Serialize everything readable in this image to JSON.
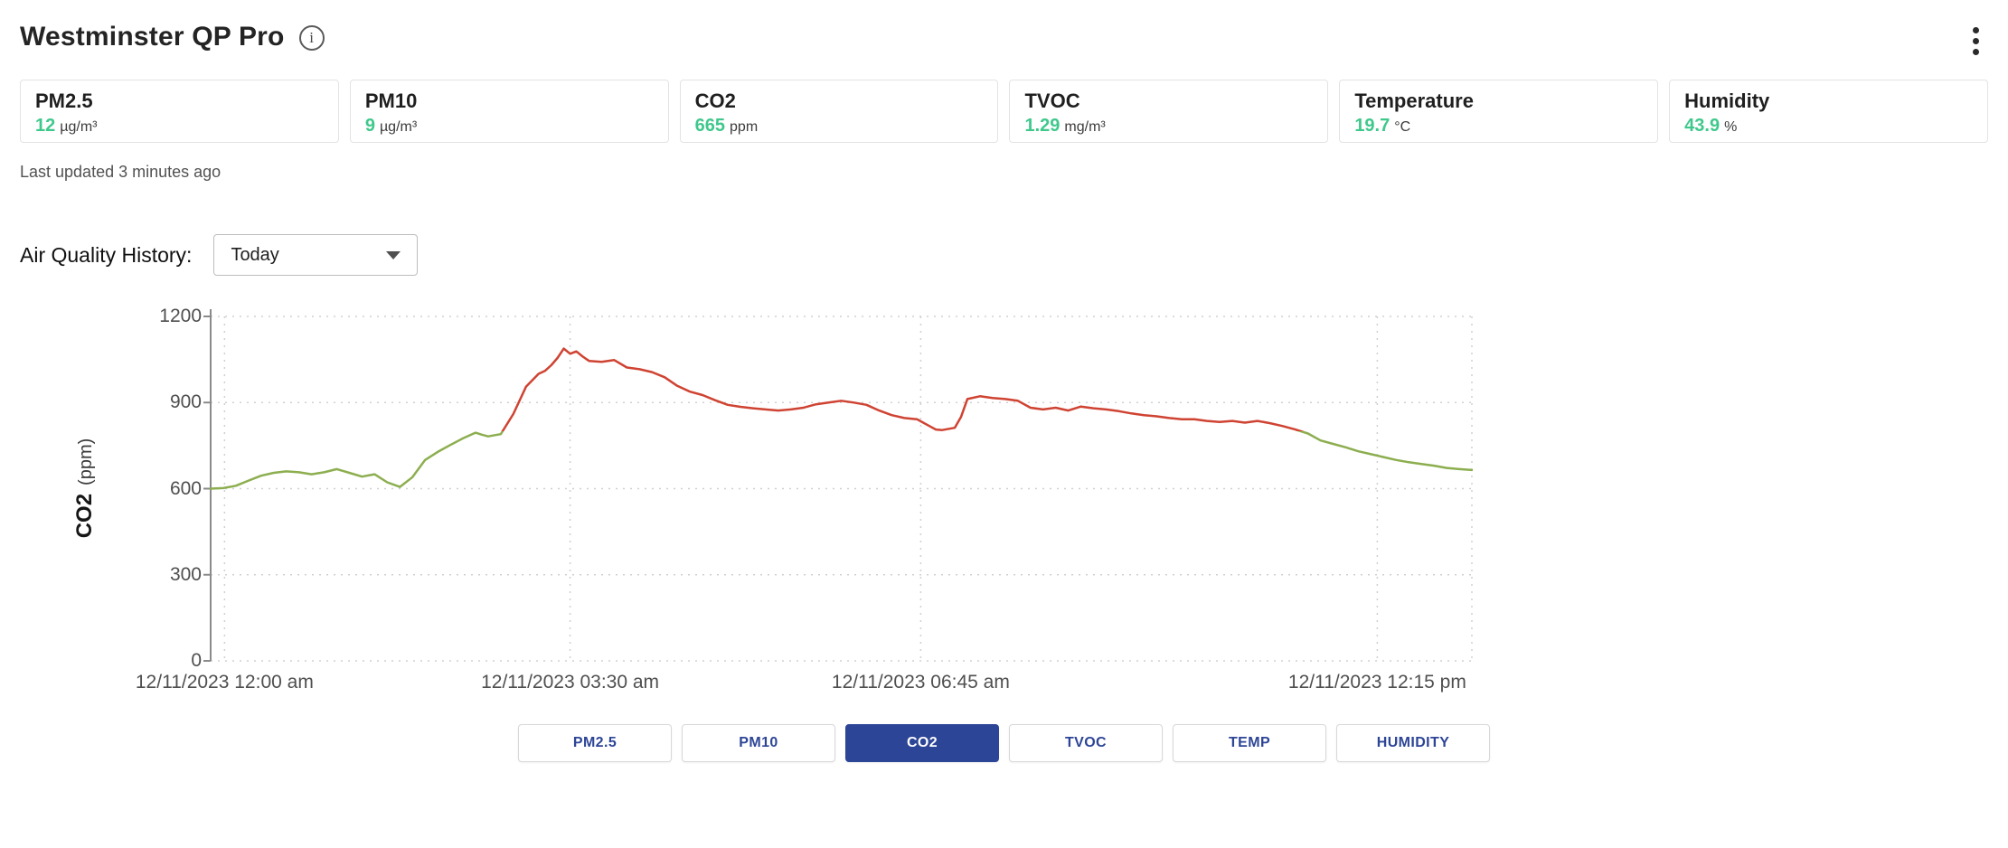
{
  "header": {
    "title": "Westminster QP Pro"
  },
  "icons": {
    "info": "i"
  },
  "cards": [
    {
      "label": "PM2.5",
      "value": "12",
      "unit": "µg/m³"
    },
    {
      "label": "PM10",
      "value": "9",
      "unit": "µg/m³"
    },
    {
      "label": "CO2",
      "value": "665",
      "unit": "ppm"
    },
    {
      "label": "TVOC",
      "value": "1.29",
      "unit": "mg/m³"
    },
    {
      "label": "Temperature",
      "value": "19.7",
      "unit": "°C"
    },
    {
      "label": "Humidity",
      "value": "43.9",
      "unit": "%"
    }
  ],
  "last_updated": "Last updated 3 minutes ago",
  "history": {
    "label": "Air Quality History:",
    "selected_range": "Today"
  },
  "toggles": [
    {
      "label": "PM2.5",
      "active": false
    },
    {
      "label": "PM10",
      "active": false
    },
    {
      "label": "CO2",
      "active": true
    },
    {
      "label": "TVOC",
      "active": false
    },
    {
      "label": "TEMP",
      "active": false
    },
    {
      "label": "HUMIDITY",
      "active": false
    }
  ],
  "colors": {
    "value_green": "#3fc88c",
    "active_button": "#2d4596",
    "line_green": "#8cae4f",
    "line_red": "#cf4332",
    "gridline": "#d0d0d0",
    "axis": "#8a8a8a"
  },
  "chart_data": {
    "type": "line",
    "title": "",
    "xlabel": "",
    "ylabel_main": "CO2",
    "ylabel_unit": "(ppm)",
    "ylim": [
      0,
      1200
    ],
    "yticks": [
      0,
      300,
      600,
      900,
      1200
    ],
    "grid": true,
    "legend": false,
    "color_threshold_ppm": 800,
    "xticks": [
      {
        "label": "12/11/2023 12:00 am",
        "pos": 0.011
      },
      {
        "label": "12/11/2023 03:30 am",
        "pos": 0.285
      },
      {
        "label": "12/11/2023 06:45 am",
        "pos": 0.563
      },
      {
        "label": "12/11/2023 12:15 pm",
        "pos": 0.925
      }
    ],
    "series": [
      {
        "name": "CO2",
        "points": [
          [
            0,
            600
          ],
          [
            0.01,
            602
          ],
          [
            0.02,
            610
          ],
          [
            0.03,
            628
          ],
          [
            0.04,
            645
          ],
          [
            0.05,
            655
          ],
          [
            0.06,
            660
          ],
          [
            0.07,
            657
          ],
          [
            0.08,
            650
          ],
          [
            0.09,
            657
          ],
          [
            0.1,
            668
          ],
          [
            0.11,
            655
          ],
          [
            0.12,
            642
          ],
          [
            0.13,
            650
          ],
          [
            0.14,
            622
          ],
          [
            0.15,
            606
          ],
          [
            0.16,
            640
          ],
          [
            0.17,
            700
          ],
          [
            0.18,
            728
          ],
          [
            0.19,
            752
          ],
          [
            0.2,
            775
          ],
          [
            0.21,
            795
          ],
          [
            0.215,
            788
          ],
          [
            0.22,
            782
          ],
          [
            0.23,
            790
          ],
          [
            0.24,
            860
          ],
          [
            0.25,
            955
          ],
          [
            0.26,
            1000
          ],
          [
            0.265,
            1010
          ],
          [
            0.27,
            1030
          ],
          [
            0.275,
            1055
          ],
          [
            0.28,
            1088
          ],
          [
            0.285,
            1070
          ],
          [
            0.29,
            1078
          ],
          [
            0.295,
            1060
          ],
          [
            0.3,
            1045
          ],
          [
            0.31,
            1042
          ],
          [
            0.32,
            1048
          ],
          [
            0.33,
            1022
          ],
          [
            0.34,
            1016
          ],
          [
            0.35,
            1006
          ],
          [
            0.36,
            988
          ],
          [
            0.37,
            958
          ],
          [
            0.38,
            938
          ],
          [
            0.39,
            926
          ],
          [
            0.4,
            908
          ],
          [
            0.41,
            892
          ],
          [
            0.42,
            885
          ],
          [
            0.43,
            880
          ],
          [
            0.44,
            876
          ],
          [
            0.45,
            872
          ],
          [
            0.46,
            876
          ],
          [
            0.47,
            882
          ],
          [
            0.48,
            894
          ],
          [
            0.49,
            900
          ],
          [
            0.5,
            906
          ],
          [
            0.51,
            900
          ],
          [
            0.52,
            892
          ],
          [
            0.53,
            872
          ],
          [
            0.54,
            856
          ],
          [
            0.55,
            846
          ],
          [
            0.56,
            842
          ],
          [
            0.57,
            818
          ],
          [
            0.575,
            806
          ],
          [
            0.58,
            804
          ],
          [
            0.59,
            812
          ],
          [
            0.595,
            850
          ],
          [
            0.6,
            912
          ],
          [
            0.61,
            922
          ],
          [
            0.62,
            916
          ],
          [
            0.63,
            912
          ],
          [
            0.64,
            906
          ],
          [
            0.65,
            882
          ],
          [
            0.66,
            876
          ],
          [
            0.67,
            882
          ],
          [
            0.68,
            872
          ],
          [
            0.69,
            886
          ],
          [
            0.7,
            880
          ],
          [
            0.71,
            876
          ],
          [
            0.72,
            870
          ],
          [
            0.73,
            862
          ],
          [
            0.74,
            856
          ],
          [
            0.75,
            852
          ],
          [
            0.76,
            846
          ],
          [
            0.77,
            842
          ],
          [
            0.78,
            842
          ],
          [
            0.79,
            836
          ],
          [
            0.8,
            832
          ],
          [
            0.81,
            836
          ],
          [
            0.82,
            830
          ],
          [
            0.83,
            836
          ],
          [
            0.84,
            828
          ],
          [
            0.85,
            818
          ],
          [
            0.86,
            806
          ],
          [
            0.87,
            792
          ],
          [
            0.88,
            768
          ],
          [
            0.89,
            756
          ],
          [
            0.9,
            744
          ],
          [
            0.91,
            730
          ],
          [
            0.92,
            720
          ],
          [
            0.93,
            710
          ],
          [
            0.94,
            700
          ],
          [
            0.95,
            692
          ],
          [
            0.96,
            686
          ],
          [
            0.97,
            680
          ],
          [
            0.98,
            672
          ],
          [
            0.99,
            668
          ],
          [
            1,
            665
          ]
        ]
      }
    ]
  }
}
